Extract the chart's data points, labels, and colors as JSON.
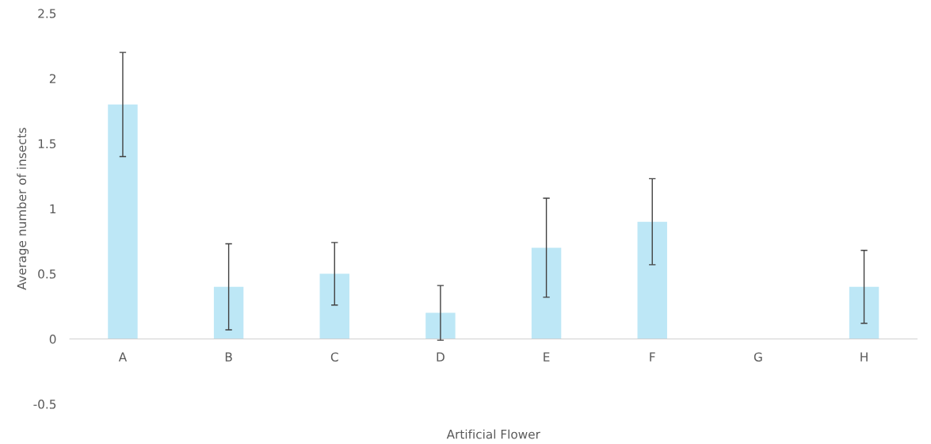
{
  "chart_data": {
    "type": "bar",
    "xlabel": "Artificial Flower",
    "ylabel": "Average number of insects",
    "categories": [
      "A",
      "B",
      "C",
      "D",
      "E",
      "F",
      "G",
      "H"
    ],
    "values": [
      1.8,
      0.4,
      0.5,
      0.2,
      0.7,
      0.9,
      0,
      0.4
    ],
    "errors": [
      0.4,
      0.33,
      0.24,
      0.21,
      0.38,
      0.33,
      null,
      0.28
    ],
    "color": "#bde7f6",
    "ylim": [
      -0.5,
      2.5
    ],
    "yticks": [
      -0.5,
      0,
      0.5,
      1,
      1.5,
      2,
      2.5
    ],
    "grid": false
  }
}
